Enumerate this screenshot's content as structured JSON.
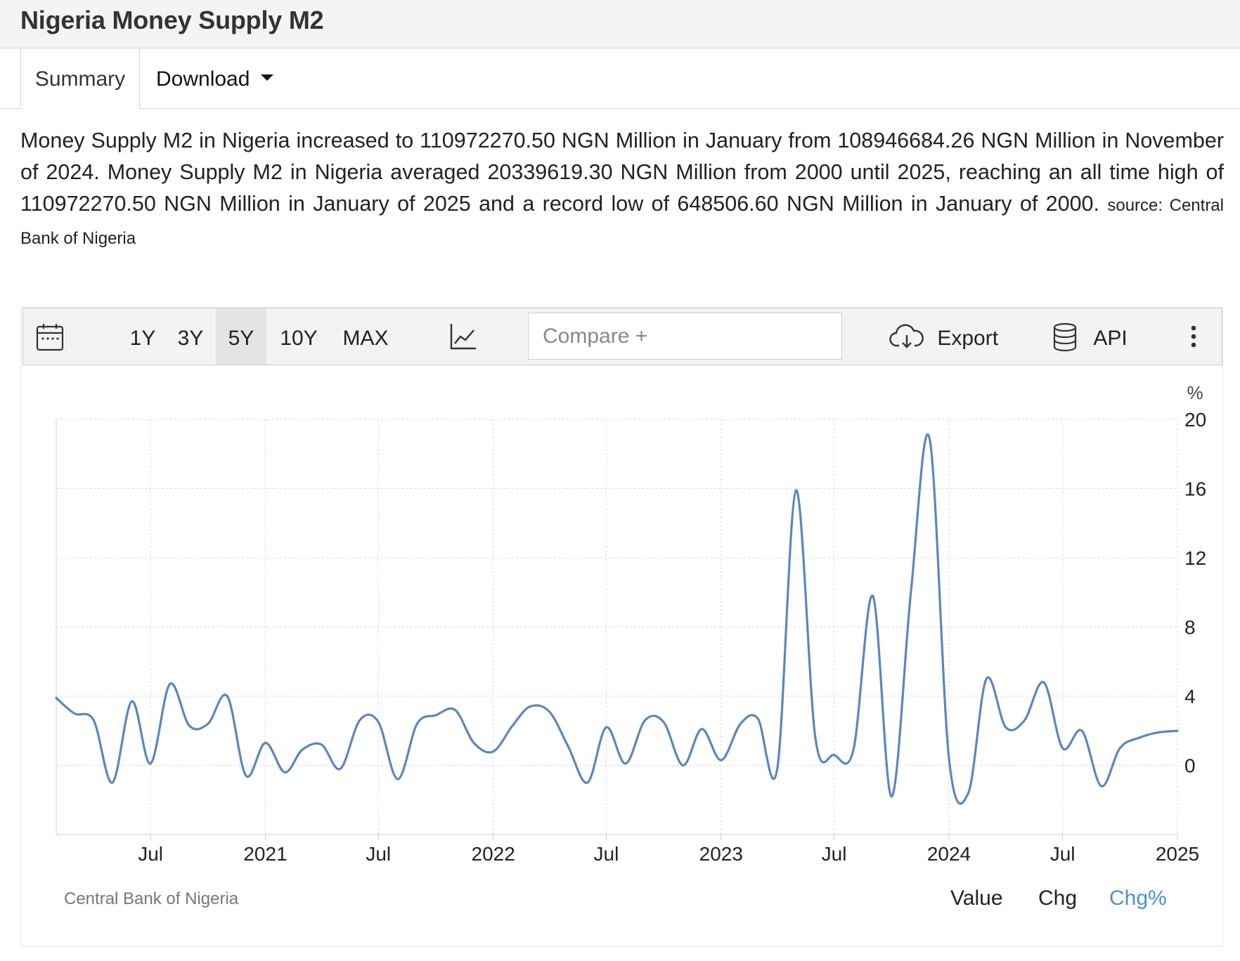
{
  "page": {
    "title": "Nigeria Money Supply M2",
    "tabs": [
      {
        "label": "Summary",
        "active": true
      },
      {
        "label": "Download",
        "active": false
      }
    ]
  },
  "summary": {
    "text": "Money Supply M2 in Nigeria increased to 110972270.50 NGN Million in January from 108946684.26 NGN Million in November of 2024. Money Supply M2 in Nigeria averaged 20339619.30 NGN Million from 2000 until 2025, reaching an all time high of 110972270.50 NGN Million in January of 2025 and a record low of 648506.60 NGN Million in January of 2000.",
    "source": "source: Central Bank of Nigeria"
  },
  "toolbar": {
    "calendar_icon": "calendar-icon",
    "ranges": [
      "1Y",
      "3Y",
      "5Y",
      "10Y",
      "MAX"
    ],
    "active_range": "5Y",
    "chart_type_icon": "line-chart-icon",
    "compare_placeholder": "Compare +",
    "export_label": "Export",
    "export_icon": "cloud-download-icon",
    "api_label": "API",
    "api_icon": "database-icon",
    "more_icon": "more-vertical-icon"
  },
  "footer": {
    "source": "Central Bank of Nigeria",
    "modes": [
      "Value",
      "Chg",
      "Chg%"
    ],
    "active_mode": "Chg%"
  },
  "colors": {
    "line": "#5b86c0",
    "accent": "#4a90d9",
    "grid": "#d9d9d9"
  },
  "chart_data": {
    "type": "line",
    "unit_label": "%",
    "ylim": [
      -4,
      20
    ],
    "yticks": [
      0,
      4,
      8,
      12,
      16,
      20
    ],
    "xlim": [
      "2020-02-01",
      "2025-01-01"
    ],
    "xticks": [
      {
        "date": "2020-07-01",
        "label": "Jul"
      },
      {
        "date": "2021-01-01",
        "label": "2021"
      },
      {
        "date": "2021-07-01",
        "label": "Jul"
      },
      {
        "date": "2022-01-01",
        "label": "2022"
      },
      {
        "date": "2022-07-01",
        "label": "Jul"
      },
      {
        "date": "2023-01-01",
        "label": "2023"
      },
      {
        "date": "2023-07-01",
        "label": "Jul"
      },
      {
        "date": "2024-01-01",
        "label": "2024"
      },
      {
        "date": "2024-07-01",
        "label": "Jul"
      },
      {
        "date": "2025-01-01",
        "label": "2025"
      }
    ],
    "grid": true,
    "series": [
      {
        "x": [
          "2020-02-01",
          "2020-03-01",
          "2020-04-01",
          "2020-05-01",
          "2020-06-01",
          "2020-07-01",
          "2020-08-01",
          "2020-09-01",
          "2020-10-01",
          "2020-11-01",
          "2020-12-01",
          "2021-01-01",
          "2021-02-01",
          "2021-03-01",
          "2021-04-01",
          "2021-05-01",
          "2021-06-01",
          "2021-07-01",
          "2021-08-01",
          "2021-09-01",
          "2021-10-01",
          "2021-11-01",
          "2021-12-01",
          "2022-01-01",
          "2022-02-01",
          "2022-03-01",
          "2022-04-01",
          "2022-05-01",
          "2022-06-01",
          "2022-07-01",
          "2022-08-01",
          "2022-09-01",
          "2022-10-01",
          "2022-11-01",
          "2022-12-01",
          "2023-01-01",
          "2023-02-01",
          "2023-03-01",
          "2023-04-01",
          "2023-05-01",
          "2023-06-01",
          "2023-07-01",
          "2023-08-01",
          "2023-09-01",
          "2023-10-01",
          "2023-11-01",
          "2023-12-01",
          "2024-01-01",
          "2024-02-01",
          "2024-03-01",
          "2024-04-01",
          "2024-05-01",
          "2024-06-01",
          "2024-07-01",
          "2024-08-01",
          "2024-09-01",
          "2024-10-01",
          "2024-11-01",
          "2024-12-01",
          "2025-01-01"
        ],
        "values": [
          3.9,
          3.0,
          2.6,
          -1.0,
          3.7,
          0.1,
          4.7,
          2.3,
          2.4,
          4.0,
          -0.6,
          1.3,
          -0.4,
          0.9,
          1.2,
          -0.2,
          2.6,
          2.5,
          -0.8,
          2.4,
          2.9,
          3.2,
          1.3,
          0.8,
          2.3,
          3.4,
          3.1,
          1.1,
          -1.0,
          2.2,
          0.1,
          2.6,
          2.5,
          0.0,
          2.1,
          0.3,
          2.4,
          2.7,
          -0.2,
          15.9,
          1.6,
          0.6,
          0.9,
          9.8,
          -1.8,
          10.0,
          18.9,
          0.4,
          -1.6,
          5.0,
          2.2,
          2.6,
          4.8,
          1.0,
          2.0,
          -1.2,
          1.0,
          1.6,
          1.9,
          2.0
        ]
      }
    ]
  }
}
